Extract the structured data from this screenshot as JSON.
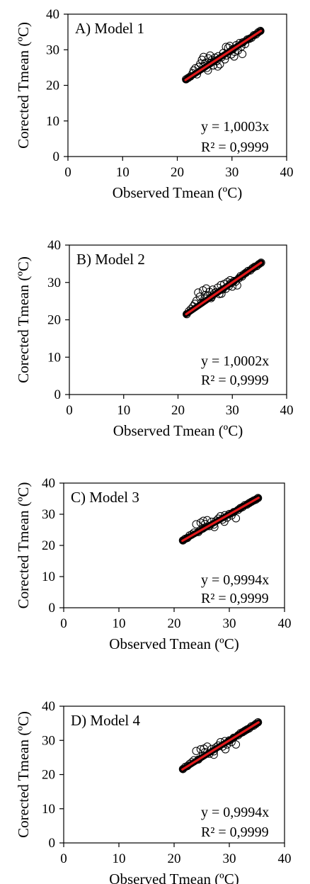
{
  "colors": {
    "marker_stroke": "#000000",
    "fit_line": "#e0191b",
    "fit_core": "#000000",
    "axis": "#000000",
    "background": "#ffffff"
  },
  "chart_data": [
    {
      "type": "scatter",
      "title": "A) Model 1",
      "xlabel": "Observed Tmean (ºC)",
      "ylabel": "Corected Tmean (ºC)",
      "xlim": [
        0,
        40
      ],
      "ylim": [
        0,
        40
      ],
      "xticks": [
        "0",
        "10",
        "20",
        "30",
        "40"
      ],
      "yticks": [
        "0",
        "10",
        "20",
        "30",
        "40"
      ],
      "grid": false,
      "trendline": {
        "slope": 1.0003,
        "intercept": 0,
        "x_range": [
          21.5,
          35.3
        ]
      },
      "equation": "y = 1,0003x",
      "r_squared": "R² = 0,9999",
      "points": [
        [
          21.6,
          21.7
        ],
        [
          22,
          22.1
        ],
        [
          22.4,
          22.5
        ],
        [
          22.8,
          23.4
        ],
        [
          23,
          24.2
        ],
        [
          23.3,
          24.8
        ],
        [
          23.6,
          23.1
        ],
        [
          23.9,
          25.2
        ],
        [
          24.2,
          26.1
        ],
        [
          24.5,
          27.2
        ],
        [
          24.8,
          25.4
        ],
        [
          25.1,
          26.3
        ],
        [
          25.4,
          24.9
        ],
        [
          25.7,
          27.6
        ],
        [
          26,
          26.2
        ],
        [
          26.3,
          27.1
        ],
        [
          26.6,
          25.6
        ],
        [
          26.9,
          27.8
        ],
        [
          27.2,
          26.8
        ],
        [
          27.5,
          28.2
        ],
        [
          27.8,
          25.9
        ],
        [
          28.1,
          27.9
        ],
        [
          28.4,
          29.1
        ],
        [
          28.7,
          27.3
        ],
        [
          29,
          28.4
        ],
        [
          29.3,
          30.6
        ],
        [
          29.6,
          31.1
        ],
        [
          29.9,
          28.7
        ],
        [
          30.2,
          30.2
        ],
        [
          30.5,
          29.4
        ],
        [
          30.8,
          31.3
        ],
        [
          31.1,
          29.8
        ],
        [
          31.4,
          31.9
        ],
        [
          31.7,
          30.9
        ],
        [
          32,
          32.1
        ],
        [
          32.4,
          31.6
        ],
        [
          32.8,
          32.9
        ],
        [
          33.2,
          33.1
        ],
        [
          33.6,
          33.4
        ],
        [
          34,
          34.1
        ],
        [
          34.4,
          34.3
        ],
        [
          34.8,
          34.9
        ],
        [
          35.2,
          35.3
        ],
        [
          26,
          28.4
        ],
        [
          24.8,
          28
        ],
        [
          27.4,
          25.3
        ],
        [
          30.4,
          28.1
        ],
        [
          25.6,
          24.2
        ],
        [
          28.9,
          30.8
        ],
        [
          31.9,
          28.8
        ]
      ]
    },
    {
      "type": "scatter",
      "title": "B) Model 2",
      "xlabel": "Observed Tmean (ºC)",
      "ylabel": "Corected Tmean (ºC)",
      "xlim": [
        0,
        40
      ],
      "ylim": [
        0,
        40
      ],
      "xticks": [
        "0",
        "10",
        "20",
        "30",
        "40"
      ],
      "yticks": [
        "0",
        "10",
        "20",
        "30",
        "40"
      ],
      "grid": false,
      "trendline": {
        "slope": 1.0002,
        "intercept": 0,
        "x_range": [
          21.5,
          35.3
        ]
      },
      "equation": "y = 1,0002x",
      "r_squared": "R² = 0,9999",
      "points": [
        [
          21.6,
          21.5
        ],
        [
          22,
          22.3
        ],
        [
          22.4,
          22.9
        ],
        [
          22.8,
          23.6
        ],
        [
          23.1,
          24.3
        ],
        [
          23.4,
          25.1
        ],
        [
          23.7,
          27.3
        ],
        [
          24,
          26.2
        ],
        [
          24.3,
          24.6
        ],
        [
          24.6,
          27.9
        ],
        [
          24.9,
          25.7
        ],
        [
          25.2,
          28.4
        ],
        [
          25.5,
          26.4
        ],
        [
          25.8,
          27.5
        ],
        [
          26.1,
          25.8
        ],
        [
          26.4,
          28.1
        ],
        [
          26.7,
          27.1
        ],
        [
          27,
          27.4
        ],
        [
          27.3,
          28.6
        ],
        [
          27.6,
          26.9
        ],
        [
          27.9,
          29.3
        ],
        [
          28.2,
          28.1
        ],
        [
          28.5,
          29.6
        ],
        [
          28.8,
          28.3
        ],
        [
          29.1,
          30.1
        ],
        [
          29.4,
          29.1
        ],
        [
          29.7,
          29.8
        ],
        [
          30,
          28.9
        ],
        [
          30.3,
          30.4
        ],
        [
          30.6,
          30.2
        ],
        [
          30.9,
          29.2
        ],
        [
          31.2,
          31.1
        ],
        [
          31.5,
          31.7
        ],
        [
          31.8,
          31.6
        ],
        [
          32.1,
          32.2
        ],
        [
          32.5,
          32.6
        ],
        [
          32.9,
          33.1
        ],
        [
          33.3,
          33.2
        ],
        [
          33.7,
          33.8
        ],
        [
          34.1,
          34.2
        ],
        [
          34.5,
          34.4
        ],
        [
          34.9,
          34.9
        ],
        [
          35.3,
          35.3
        ],
        [
          25,
          26.6
        ],
        [
          26.2,
          26.1
        ],
        [
          28,
          27
        ],
        [
          29.6,
          30.6
        ]
      ]
    },
    {
      "type": "scatter",
      "title": "C) Model 3",
      "xlabel": "Observed Tmean (ºC)",
      "ylabel": "Corected Tmean (ºC)",
      "xlim": [
        0,
        40
      ],
      "ylim": [
        0,
        40
      ],
      "xticks": [
        "0",
        "10",
        "20",
        "30",
        "40"
      ],
      "yticks": [
        "0",
        "10",
        "20",
        "30",
        "40"
      ],
      "grid": false,
      "trendline": {
        "slope": 0.9994,
        "intercept": 0,
        "x_range": [
          21.5,
          35.3
        ]
      },
      "equation": "y = 0,9994x",
      "r_squared": "R² = 0,9999",
      "points": [
        [
          21.6,
          21.6
        ],
        [
          22,
          22.1
        ],
        [
          22.4,
          22.4
        ],
        [
          22.8,
          23.2
        ],
        [
          23.2,
          23.5
        ],
        [
          23.6,
          24.1
        ],
        [
          24,
          26.8
        ],
        [
          24.4,
          24.3
        ],
        [
          24.8,
          27.3
        ],
        [
          25.2,
          25.4
        ],
        [
          25.6,
          26.9
        ],
        [
          26,
          28.1
        ],
        [
          26.4,
          26.2
        ],
        [
          26.8,
          27.6
        ],
        [
          27.2,
          26.7
        ],
        [
          27.6,
          27.9
        ],
        [
          28,
          28.6
        ],
        [
          28.4,
          29.4
        ],
        [
          28.8,
          28.3
        ],
        [
          29.2,
          29.7
        ],
        [
          29.6,
          28.9
        ],
        [
          30,
          30.1
        ],
        [
          30.4,
          29.6
        ],
        [
          30.8,
          30.7
        ],
        [
          31.2,
          28.7
        ],
        [
          31.6,
          31.4
        ],
        [
          32,
          32
        ],
        [
          32.4,
          32.3
        ],
        [
          32.8,
          32.9
        ],
        [
          33.2,
          33.1
        ],
        [
          33.6,
          33.6
        ],
        [
          34,
          34
        ],
        [
          34.4,
          34.4
        ],
        [
          34.8,
          34.7
        ],
        [
          35.2,
          35.2
        ],
        [
          25.3,
          27.9
        ],
        [
          27.3,
          25.9
        ],
        [
          29.1,
          27.6
        ]
      ]
    },
    {
      "type": "scatter",
      "title": "D) Model 4",
      "xlabel": "Observed Tmean (ºC)",
      "ylabel": "Corected Tmean (ºC)",
      "xlim": [
        0,
        40
      ],
      "ylim": [
        0,
        40
      ],
      "xticks": [
        "0",
        "10",
        "20",
        "30",
        "40"
      ],
      "yticks": [
        "0",
        "10",
        "20",
        "30",
        "40"
      ],
      "grid": false,
      "trendline": {
        "slope": 0.9994,
        "intercept": 0,
        "x_range": [
          21.5,
          35.3
        ]
      },
      "equation": "y = 0,9994x",
      "r_squared": "R² = 0,9999",
      "points": [
        [
          21.6,
          21.6
        ],
        [
          22,
          22.2
        ],
        [
          22.4,
          22.5
        ],
        [
          22.8,
          23.1
        ],
        [
          23.2,
          23.6
        ],
        [
          23.6,
          24.2
        ],
        [
          24,
          26.9
        ],
        [
          24.4,
          24.4
        ],
        [
          24.8,
          27.4
        ],
        [
          25.2,
          25.5
        ],
        [
          25.6,
          26.6
        ],
        [
          26,
          28.2
        ],
        [
          26.4,
          26.1
        ],
        [
          26.8,
          27.5
        ],
        [
          27.2,
          26.8
        ],
        [
          27.6,
          28
        ],
        [
          28,
          28.5
        ],
        [
          28.4,
          29.5
        ],
        [
          28.8,
          28.2
        ],
        [
          29.2,
          29.8
        ],
        [
          29.6,
          28.8
        ],
        [
          30,
          30
        ],
        [
          30.4,
          29.5
        ],
        [
          30.8,
          30.8
        ],
        [
          31.2,
          28.8
        ],
        [
          31.6,
          31.5
        ],
        [
          32,
          32.1
        ],
        [
          32.4,
          32.4
        ],
        [
          32.8,
          32.8
        ],
        [
          33.2,
          33.2
        ],
        [
          33.6,
          33.5
        ],
        [
          34,
          34.1
        ],
        [
          34.4,
          34.3
        ],
        [
          34.8,
          34.8
        ],
        [
          35.2,
          35.3
        ],
        [
          25.4,
          27.6
        ],
        [
          27.2,
          25.8
        ],
        [
          29.3,
          27.4
        ]
      ]
    }
  ]
}
